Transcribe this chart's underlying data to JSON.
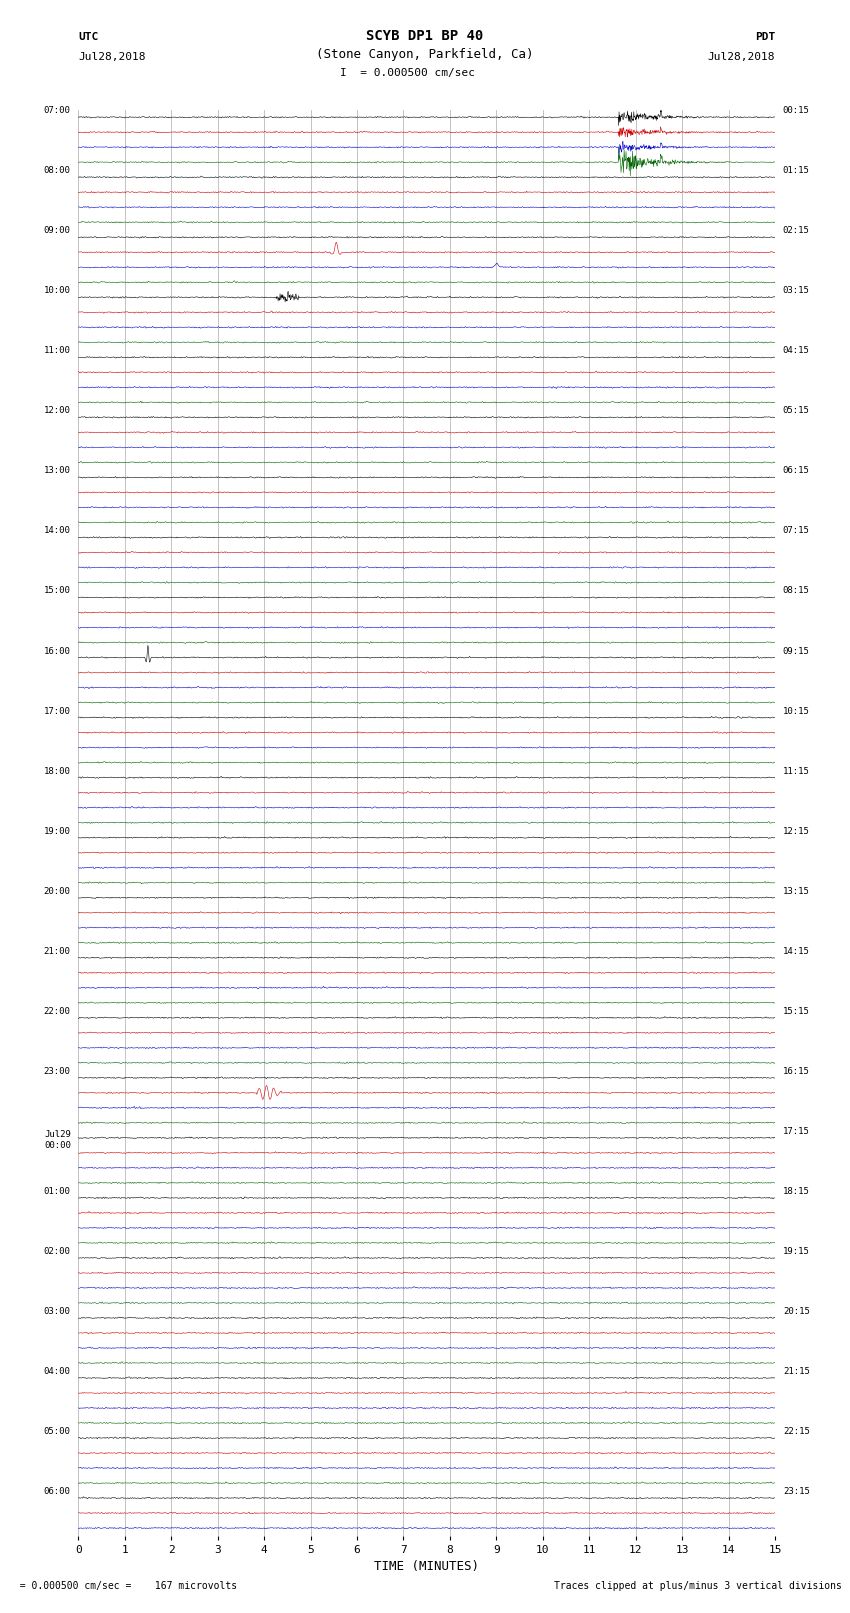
{
  "title_line1": "SCYB DP1 BP 40",
  "title_line2": "(Stone Canyon, Parkfield, Ca)",
  "scale_label": "= 0.000500 cm/sec",
  "utc_label": "UTC",
  "utc_date": "Jul28,2018",
  "pdt_label": "PDT",
  "pdt_date": "Jul28,2018",
  "xlabel": "TIME (MINUTES)",
  "footer_left": "= 0.000500 cm/sec =    167 microvolts",
  "footer_right": "Traces clipped at plus/minus 3 vertical divisions",
  "left_times_utc": [
    "07:00",
    "",
    "",
    "",
    "08:00",
    "",
    "",
    "",
    "09:00",
    "",
    "",
    "",
    "10:00",
    "",
    "",
    "",
    "11:00",
    "",
    "",
    "",
    "12:00",
    "",
    "",
    "",
    "13:00",
    "",
    "",
    "",
    "14:00",
    "",
    "",
    "",
    "15:00",
    "",
    "",
    "",
    "16:00",
    "",
    "",
    "",
    "17:00",
    "",
    "",
    "",
    "18:00",
    "",
    "",
    "",
    "19:00",
    "",
    "",
    "",
    "20:00",
    "",
    "",
    "",
    "21:00",
    "",
    "",
    "",
    "22:00",
    "",
    "",
    "",
    "23:00",
    "",
    "",
    "",
    "Jul29",
    "00:00",
    "",
    "",
    "01:00",
    "",
    "",
    "",
    "02:00",
    "",
    "",
    "",
    "03:00",
    "",
    "",
    "",
    "04:00",
    "",
    "",
    "",
    "05:00",
    "",
    "",
    "",
    "06:00",
    "",
    ""
  ],
  "right_times_pdt": [
    "00:15",
    "",
    "",
    "",
    "01:15",
    "",
    "",
    "",
    "02:15",
    "",
    "",
    "",
    "03:15",
    "",
    "",
    "",
    "04:15",
    "",
    "",
    "",
    "05:15",
    "",
    "",
    "",
    "06:15",
    "",
    "",
    "",
    "07:15",
    "",
    "",
    "",
    "08:15",
    "",
    "",
    "",
    "09:15",
    "",
    "",
    "",
    "10:15",
    "",
    "",
    "",
    "11:15",
    "",
    "",
    "",
    "12:15",
    "",
    "",
    "",
    "13:15",
    "",
    "",
    "",
    "14:15",
    "",
    "",
    "",
    "15:15",
    "",
    "",
    "",
    "16:15",
    "",
    "",
    "",
    "17:15",
    "",
    "",
    "",
    "18:15",
    "",
    "",
    "",
    "19:15",
    "",
    "",
    "",
    "20:15",
    "",
    "",
    "",
    "21:15",
    "",
    "",
    "",
    "22:15",
    "",
    "",
    "",
    "23:15",
    "",
    ""
  ],
  "bg_color": "#ffffff",
  "trace_colors": [
    "#000000",
    "#cc0000",
    "#0000cc",
    "#006400"
  ],
  "grid_color": "#888888",
  "num_hour_rows": 23,
  "traces_per_hour": 4,
  "x_min": 0,
  "x_max": 15,
  "x_ticks": [
    0,
    1,
    2,
    3,
    4,
    5,
    6,
    7,
    8,
    9,
    10,
    11,
    12,
    13,
    14,
    15
  ],
  "seed": 42
}
